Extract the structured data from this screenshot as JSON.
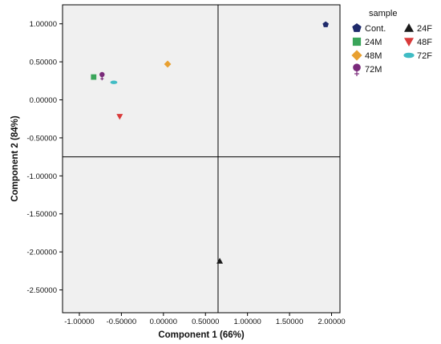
{
  "chart_data": {
    "type": "scatter",
    "xlabel": "Component 1 (66%)",
    "ylabel": "Component 2 (84%)",
    "xlim": [
      -1.2,
      2.1
    ],
    "ylim": [
      -2.8,
      1.25
    ],
    "x_ticks": [
      -1.0,
      -0.5,
      0.0,
      0.5,
      1.0,
      1.5,
      2.0
    ],
    "y_ticks": [
      1.0,
      0.5,
      0.0,
      -0.5,
      -1.0,
      -1.5,
      -2.0,
      -2.5
    ],
    "x_tick_labels": [
      "-1.00000",
      "-0.50000",
      "0.00000",
      "0.50000",
      "1.00000",
      "1.50000",
      "2.00000"
    ],
    "y_tick_labels": [
      "1.00000",
      "0.50000",
      "0.00000",
      "-0.50000",
      "-1.00000",
      "-1.50000",
      "-2.00000",
      "-2.50000"
    ],
    "reference_lines": {
      "x": 0.65,
      "y": -0.75
    },
    "grid": false,
    "legend": {
      "title": "sample",
      "placement": "right"
    },
    "series": [
      {
        "name": "Cont.",
        "marker": "pentagon",
        "color": "#1f2a6b",
        "x": 1.93,
        "y": 0.99
      },
      {
        "name": "24F",
        "marker": "triangle-up",
        "color": "#1a1a1a",
        "x": 0.67,
        "y": -2.12
      },
      {
        "name": "24M",
        "marker": "square",
        "color": "#3aa55a",
        "x": -0.83,
        "y": 0.3
      },
      {
        "name": "48F",
        "marker": "triangle-down",
        "color": "#d93a3a",
        "x": -0.52,
        "y": -0.22
      },
      {
        "name": "48M",
        "marker": "diamond",
        "color": "#e8a030",
        "x": 0.05,
        "y": 0.47
      },
      {
        "name": "72F",
        "marker": "ellipse",
        "color": "#40bcc4",
        "x": -0.59,
        "y": 0.23
      },
      {
        "name": "72M",
        "marker": "female",
        "color": "#7a2a7a",
        "x": -0.73,
        "y": 0.32
      }
    ]
  }
}
